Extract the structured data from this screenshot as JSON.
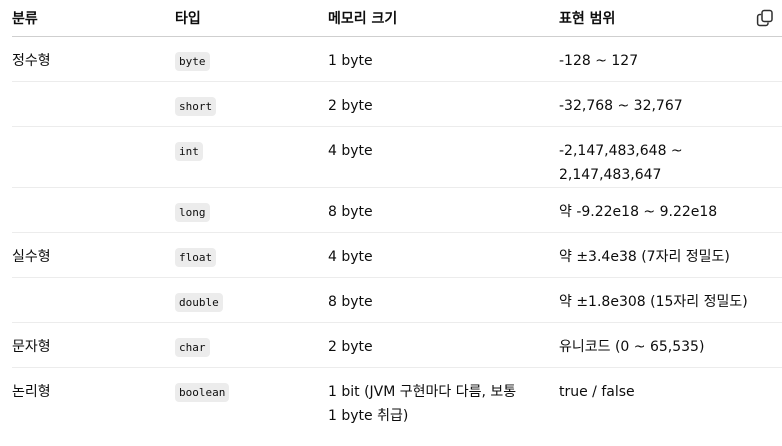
{
  "headers": [
    "분류",
    "타입",
    "메모리 크기",
    "표현 범위"
  ],
  "rows": [
    {
      "category": "정수형",
      "type": "byte",
      "size": "1 byte",
      "range": "-128 ~ 127"
    },
    {
      "category": "",
      "type": "short",
      "size": "2 byte",
      "range": "-32,768 ~ 32,767"
    },
    {
      "category": "",
      "type": "int",
      "size": "4 byte",
      "range": "-2,147,483,648 ~ 2,147,483,647"
    },
    {
      "category": "",
      "type": "long",
      "size": "8 byte",
      "range": "약 -9.22e18 ~ 9.22e18"
    },
    {
      "category": "실수형",
      "type": "float",
      "size": "4 byte",
      "range": "약 ±3.4e38 (7자리 정밀도)"
    },
    {
      "category": "",
      "type": "double",
      "size": "8 byte",
      "range": "약 ±1.8e308 (15자리 정밀도)"
    },
    {
      "category": "문자형",
      "type": "char",
      "size": "2 byte",
      "range": "유니코드 (0 ~ 65,535)"
    },
    {
      "category": "논리형",
      "type": "boolean",
      "size": "1 bit (JVM 구현마다 다름, 보통 1 byte 취급)",
      "range": "true / false"
    }
  ],
  "icons": {
    "copy": "copy-icon"
  }
}
